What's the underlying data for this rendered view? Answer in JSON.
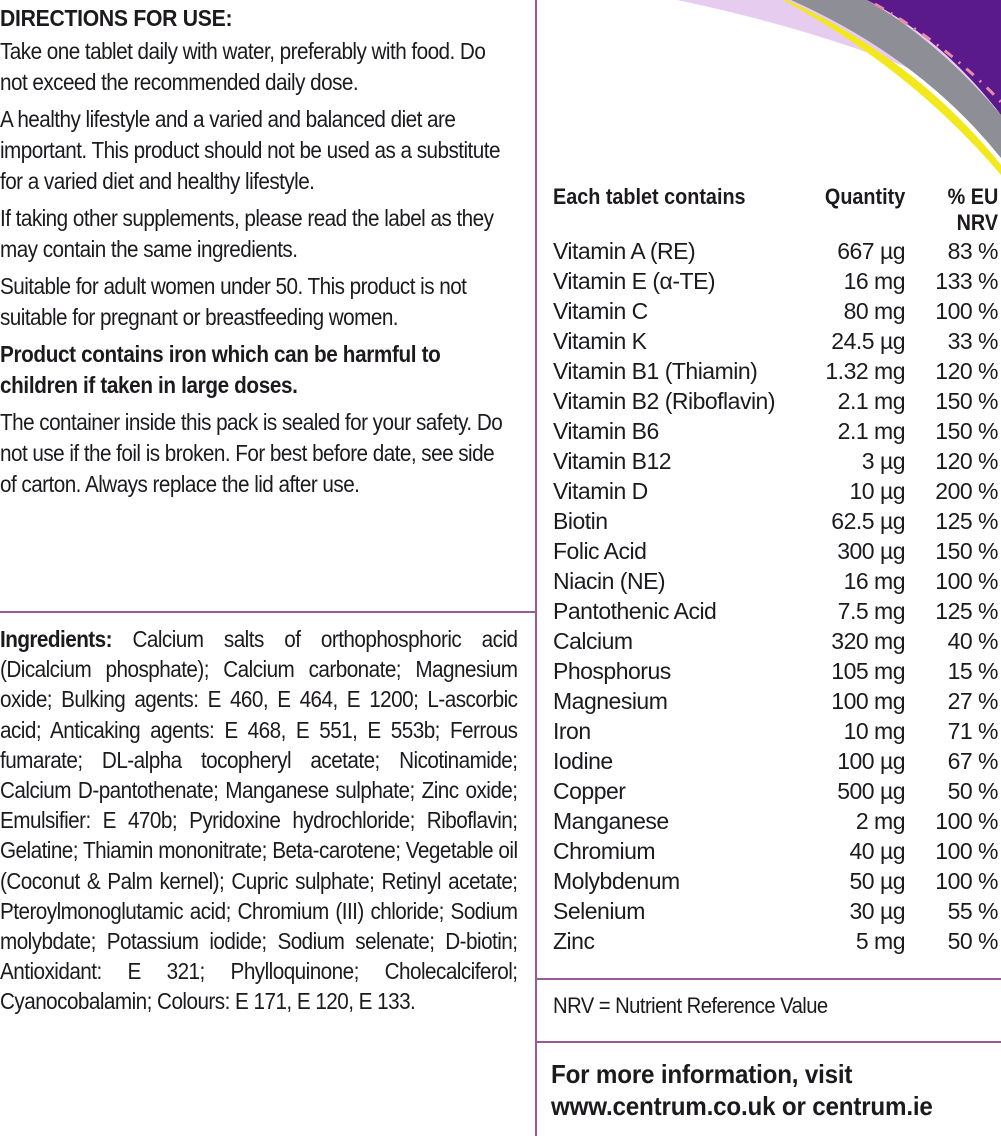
{
  "directions": {
    "title": "DIRECTIONS FOR USE:",
    "paragraphs": [
      "Take one tablet daily with water, preferably with food. Do not exceed the recommended daily dose.",
      "A healthy lifestyle and a varied and balanced diet are important. This product should not be used as a substitute for a varied diet and healthy lifestyle.",
      "If taking other supplements, please read the label as they may contain the same ingredients.",
      "Suitable for adult women under 50. This product is not suitable for pregnant or breastfeeding women."
    ],
    "warning": "Product contains iron which can be harmful to children if taken in large doses.",
    "storage": "The container inside this pack is sealed for your safety. Do not use if the foil is broken. For best before date, see side of carton. Always replace the lid after use."
  },
  "ingredients": {
    "label": "Ingredients:",
    "text": " Calcium salts of orthophosphoric acid (Dicalcium phosphate); Calcium carbonate; Magnesium oxide; Bulking agents: E 460, E 464, E 1200; L-ascorbic acid; Anticaking agents: E 468, E 551, E 553b; Ferrous fumarate; DL-alpha tocopheryl acetate; Nicotinamide; Calcium D-pantothenate; Manganese sulphate; Zinc oxide; Emulsifier: E 470b; Pyridoxine hydrochloride; Riboflavin; Gelatine; Thiamin mononitrate; Beta-carotene; Vegetable oil (Coconut & Palm kernel); Cupric sulphate; Retinyl acetate; Pteroylmonoglutamic acid; Chromium (III) chloride; Sodium molybdate; Potassium iodide; Sodium selenate; D-biotin; Antioxidant: E 321; Phylloquinone; Cholecalciferol; Cyanocobalamin; Colours: E 171, E 120, E 133."
  },
  "nutrition": {
    "headers": {
      "name": "Each tablet contains",
      "quantity": "Quantity",
      "nrv_line1": "% EU",
      "nrv_line2": "NRV"
    },
    "rows": [
      {
        "name": "Vitamin A (RE)",
        "quantity": "667 µg",
        "nrv": "83 %"
      },
      {
        "name": "Vitamin E (α-TE)",
        "quantity": "16 mg",
        "nrv": "133 %"
      },
      {
        "name": "Vitamin C",
        "quantity": "80 mg",
        "nrv": "100 %"
      },
      {
        "name": "Vitamin K",
        "quantity": "24.5 µg",
        "nrv": "33 %"
      },
      {
        "name": "Vitamin B1 (Thiamin)",
        "quantity": "1.32 mg",
        "nrv": "120 %"
      },
      {
        "name": "Vitamin B2 (Riboflavin)",
        "quantity": "2.1 mg",
        "nrv": "150 %"
      },
      {
        "name": "Vitamin B6",
        "quantity": "2.1 mg",
        "nrv": "150 %"
      },
      {
        "name": "Vitamin B12",
        "quantity": "3 µg",
        "nrv": "120 %"
      },
      {
        "name": "Vitamin D",
        "quantity": "10 µg",
        "nrv": "200 %"
      },
      {
        "name": "Biotin",
        "quantity": "62.5 µg",
        "nrv": "125 %"
      },
      {
        "name": "Folic Acid",
        "quantity": "300 µg",
        "nrv": "150 %"
      },
      {
        "name": "Niacin (NE)",
        "quantity": "16 mg",
        "nrv": "100 %"
      },
      {
        "name": "Pantothenic Acid",
        "quantity": "7.5 mg",
        "nrv": "125 %"
      },
      {
        "name": "Calcium",
        "quantity": "320 mg",
        "nrv": "40 %"
      },
      {
        "name": "Phosphorus",
        "quantity": "105 mg",
        "nrv": "15 %"
      },
      {
        "name": "Magnesium",
        "quantity": "100 mg",
        "nrv": "27 %"
      },
      {
        "name": "Iron",
        "quantity": "10 mg",
        "nrv": "71 %"
      },
      {
        "name": "Iodine",
        "quantity": "100 µg",
        "nrv": "67 %"
      },
      {
        "name": "Copper",
        "quantity": "500 µg",
        "nrv": "50 %"
      },
      {
        "name": "Manganese",
        "quantity": "2 mg",
        "nrv": "100 %"
      },
      {
        "name": "Chromium",
        "quantity": "40 µg",
        "nrv": "100 %"
      },
      {
        "name": "Molybdenum",
        "quantity": "50 µg",
        "nrv": "100 %"
      },
      {
        "name": "Selenium",
        "quantity": "30 µg",
        "nrv": "55 %"
      },
      {
        "name": "Zinc",
        "quantity": "5 mg",
        "nrv": "50 %"
      }
    ],
    "footnote": "NRV = Nutrient Reference Value"
  },
  "more_info": {
    "line1": "For more information, visit",
    "line2": "www.centrum.co.uk or centrum.ie"
  },
  "colors": {
    "divider": "#9a5a98",
    "graphic_purple": "#5a1a8c",
    "graphic_grey": "#8e8e96",
    "graphic_yellow": "#f2e81c",
    "graphic_lilac": "#e3c8ee"
  }
}
